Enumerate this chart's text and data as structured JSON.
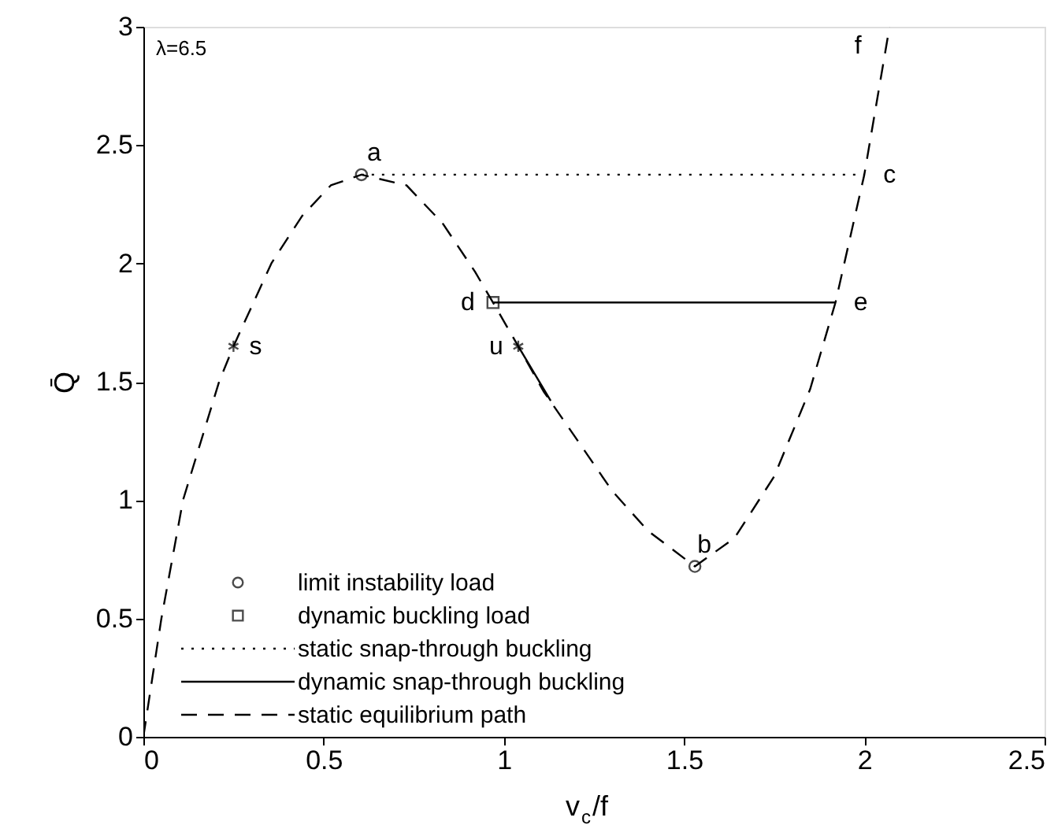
{
  "chart_data": {
    "type": "line",
    "xlabel": "v$_{c}$/f",
    "ylabel": "Q̄",
    "xlim": [
      0,
      2.5
    ],
    "ylim": [
      0,
      3
    ],
    "xticks": [
      0,
      0.5,
      1,
      1.5,
      2,
      2.5
    ],
    "yticks": [
      0,
      0.5,
      1,
      1.5,
      2,
      2.5,
      3
    ],
    "grid": false,
    "legend": "bottom left",
    "series": [
      {
        "name": "limit instability load",
        "type": "scatter",
        "marker": "circle",
        "color": "#000000",
        "x": [
          0.605,
          1.53
        ],
        "values": [
          2.375,
          0.72
        ]
      },
      {
        "name": "dynamic buckling load",
        "type": "scatter",
        "marker": "square",
        "color": "#000000",
        "x": [
          0.97
        ],
        "values": [
          1.835
        ]
      },
      {
        "name": "static snap-through buckling",
        "type": "line",
        "line_style": "dotted",
        "color": "#000000",
        "x": [
          0.605,
          2.0
        ],
        "values": [
          2.375,
          2.375
        ]
      },
      {
        "name": "dynamic snap-through buckling",
        "type": "line",
        "line_style": "solid",
        "color": "#000000",
        "x": [
          0.97,
          1.92,
          1.5,
          1.04,
          1.13
        ],
        "values": [
          1.835,
          1.835,
          null,
          1.65,
          1.42
        ]
      },
      {
        "name": "static equilibrium path",
        "type": "line",
        "line_style": "dashed",
        "color": "#000000",
        "x": [
          0,
          0.05,
          0.11,
          0.21,
          0.25,
          0.355,
          0.44,
          0.52,
          0.605,
          0.73,
          0.83,
          0.92,
          0.97,
          1.04,
          1.11,
          1.21,
          1.3,
          1.4,
          1.53,
          1.64,
          1.75,
          1.85,
          1.92,
          2.0,
          2.07
        ],
        "values": [
          0,
          0.5,
          1,
          1.5,
          1.65,
          2,
          2.2,
          2.33,
          2.375,
          2.33,
          2.17,
          1.965,
          1.835,
          1.65,
          1.46,
          1.24,
          1.04,
          0.87,
          0.72,
          0.84,
          1.1,
          1.47,
          1.835,
          2.375,
          3
        ]
      },
      {
        "type": "scatter",
        "marker": "cross",
        "color": "#000000",
        "x": [
          0.25,
          1.04
        ],
        "values": [
          1.65,
          1.65
        ]
      }
    ],
    "annotations": [
      "λ=6.5",
      {
        "text": "a",
        "x": 0.605,
        "y": 2.375
      },
      {
        "text": "b",
        "x": 1.53,
        "y": 0.72
      },
      {
        "text": "c",
        "x": 2.0,
        "y": 2.375
      },
      {
        "text": "d",
        "x": 0.97,
        "y": 1.835
      },
      {
        "text": "e",
        "x": 1.92,
        "y": 1.835
      },
      {
        "text": "f",
        "x": 2.07,
        "y": 3
      },
      {
        "text": "s",
        "x": 0.25,
        "y": 1.65
      },
      {
        "text": "u",
        "x": 1.04,
        "y": 1.65
      }
    ]
  }
}
